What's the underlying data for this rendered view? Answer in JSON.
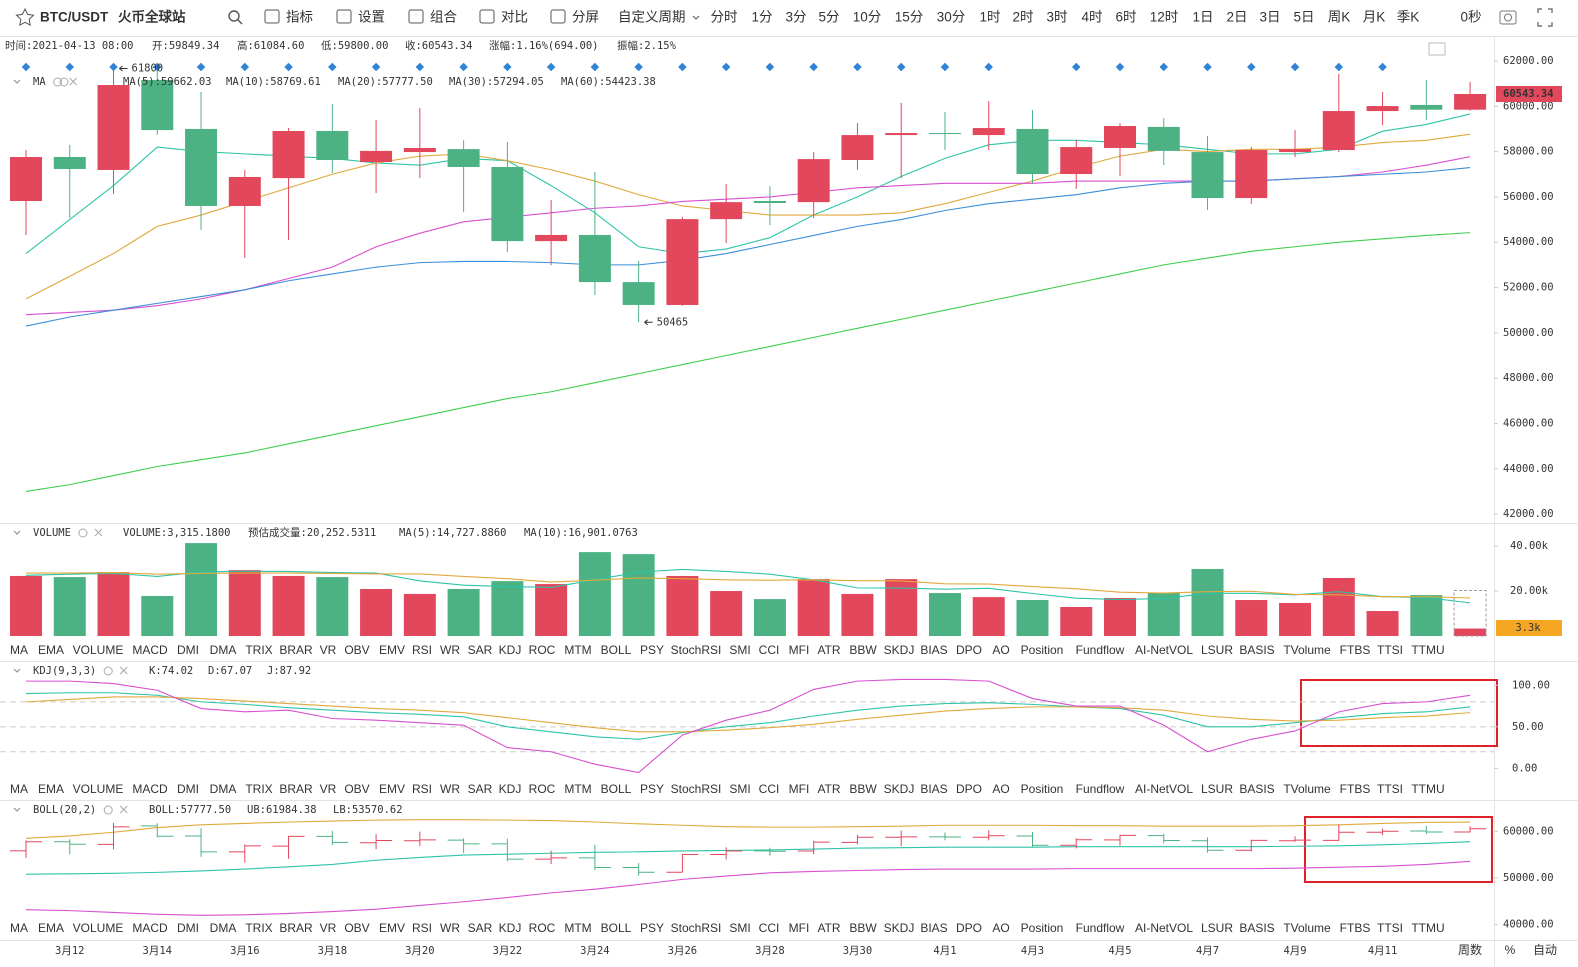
{
  "toolbar": {
    "symbol": "BTC/USDT",
    "exchange": "火币全球站",
    "buttons": [
      "指标",
      "设置",
      "组合",
      "对比",
      "分屏"
    ],
    "custom_period": "自定义周期",
    "periods": [
      "分时",
      "1分",
      "3分",
      "5分",
      "10分",
      "15分",
      "30分",
      "1时",
      "2时",
      "3时",
      "4时",
      "6时",
      "12时",
      "1日",
      "2日",
      "3日",
      "5日",
      "周K",
      "月K",
      "季K"
    ],
    "countdown": "0秒"
  },
  "info": [
    {
      "label": "时间:",
      "value": "2021-04-13 08:00"
    },
    {
      "label": "开:",
      "value": "59849.34"
    },
    {
      "label": "高:",
      "value": "61084.60"
    },
    {
      "label": "低:",
      "value": "59800.00"
    },
    {
      "label": "收:",
      "value": "60543.34"
    },
    {
      "label": "涨幅:",
      "value": "1.16%(694.00)"
    },
    {
      "label": "振幅:",
      "value": "2.15%"
    }
  ],
  "indicator_tabs": [
    "MA",
    "EMA",
    "VOLUME",
    "MACD",
    "DMI",
    "DMA",
    "TRIX",
    "BRAR",
    "VR",
    "OBV",
    "EMV",
    "RSI",
    "WR",
    "SAR",
    "KDJ",
    "ROC",
    "MTM",
    "BOLL",
    "PSY",
    "StochRSI",
    "SMI",
    "CCI",
    "MFI",
    "ATR",
    "BBW",
    "SKDJ",
    "BIAS",
    "DPO",
    "AO",
    "Position",
    "Fundflow",
    "AI-NetVOL",
    "LSUR",
    "BASIS",
    "TVolume",
    "FTBS",
    "TTSI",
    "TTMU"
  ],
  "x_axis": {
    "categories": [
      null,
      "3月12",
      null,
      "3月14",
      null,
      "3月16",
      null,
      "3月18",
      null,
      "3月20",
      null,
      "3月22",
      null,
      "3月24",
      null,
      "3月26",
      null,
      "3月28",
      null,
      "3月30",
      null,
      "4月1",
      null,
      "4月3",
      null,
      "4月5",
      null,
      "4月7",
      null,
      "4月9",
      null,
      "4月11",
      null,
      null
    ],
    "buttons": [
      "周数",
      "%",
      "自动"
    ]
  },
  "price_chart": {
    "type": "candlestick",
    "name": "MA",
    "up_color": "#e2475b",
    "down_color": "#4cb283",
    "ylim": [
      41650,
      63015
    ],
    "yticks": [
      {
        "value": 62000,
        "label": "62000.00"
      },
      {
        "value": 60000,
        "label": "60000.00"
      },
      {
        "value": 58000,
        "label": "58000.00"
      },
      {
        "value": 56000,
        "label": "56000.00"
      },
      {
        "value": 54000,
        "label": "54000.00"
      },
      {
        "value": 52000,
        "label": "52000.00"
      },
      {
        "value": 50000,
        "label": "50000.00"
      },
      {
        "value": 48000,
        "label": "48000.00"
      },
      {
        "value": 46000,
        "label": "46000.00"
      },
      {
        "value": 44000,
        "label": "44000.00"
      },
      {
        "value": 42000,
        "label": "42000.00"
      }
    ],
    "open": [
      55819,
      57762,
      57190,
      61160,
      59000,
      55600,
      56830,
      58910,
      57540,
      57980,
      58110,
      57320,
      54050,
      54320,
      52240,
      51230,
      55020,
      55820,
      55770,
      57630,
      58730,
      58820,
      58730,
      59000,
      57010,
      58160,
      59090,
      57980,
      55950,
      57980,
      58070,
      59790,
      60060,
      59849.34
    ],
    "high": [
      58070,
      58300,
      61800,
      61700,
      60630,
      57190,
      59040,
      60100,
      59400,
      59920,
      58500,
      58420,
      55860,
      57100,
      53170,
      55110,
      56570,
      56480,
      57980,
      59260,
      60150,
      59750,
      60230,
      59840,
      58510,
      59260,
      59480,
      58690,
      58200,
      58950,
      61430,
      60630,
      61160,
      61084.6
    ],
    "low": [
      54320,
      55070,
      56130,
      58730,
      54540,
      53300,
      54100,
      57060,
      56170,
      56830,
      55330,
      53570,
      52990,
      51670,
      50465,
      51190,
      53960,
      54760,
      55070,
      57190,
      56830,
      58070,
      58070,
      56610,
      56350,
      56920,
      57410,
      55420,
      55690,
      57760,
      57980,
      59170,
      59390,
      59800
    ],
    "close": [
      57762,
      57232,
      60940,
      58950,
      55600,
      56880,
      58910,
      57630,
      58030,
      58160,
      57320,
      54050,
      54320,
      52240,
      51230,
      55020,
      55770,
      55730,
      57670,
      58730,
      58820,
      58780,
      59040,
      57010,
      58200,
      59130,
      58030,
      55950,
      58070,
      58110,
      59790,
      60010,
      59850,
      60543.34
    ],
    "series": [
      {
        "name": "MA(5):59662.03",
        "color": "#2ec4a8",
        "values": [
          53500,
          55000,
          56500,
          58200,
          58000,
          57900,
          57800,
          57700,
          57500,
          57400,
          57700,
          57600,
          56500,
          55300,
          53800,
          53500,
          53700,
          54200,
          55200,
          56000,
          56900,
          57700,
          58300,
          58500,
          58500,
          58400,
          58300,
          58100,
          57900,
          57900,
          58100,
          58900,
          59200,
          59662.03
        ]
      },
      {
        "name": "MA(10):58769.61",
        "color": "#e0a93c",
        "values": [
          51500,
          52500,
          53500,
          54700,
          55200,
          55800,
          56400,
          57000,
          57500,
          57800,
          57900,
          57600,
          57200,
          56700,
          56100,
          55600,
          55400,
          55200,
          55200,
          55200,
          55300,
          55700,
          56200,
          56700,
          57300,
          57800,
          58100,
          58000,
          58100,
          58100,
          58200,
          58400,
          58500,
          58769.61
        ]
      },
      {
        "name": "MA(20):57777.50",
        "color": "#d84fd2",
        "values": [
          50800,
          50900,
          51000,
          51200,
          51500,
          51900,
          52400,
          52900,
          53800,
          54400,
          54900,
          55100,
          55300,
          55500,
          55600,
          55800,
          55900,
          56000,
          56200,
          56400,
          56500,
          56600,
          56600,
          56600,
          56700,
          56700,
          56700,
          56700,
          56700,
          56800,
          56900,
          57100,
          57400,
          57777.5
        ]
      },
      {
        "name": "MA(30):57294.05",
        "color": "#3b8fd8",
        "values": [
          50300,
          50700,
          51000,
          51300,
          51600,
          51900,
          52300,
          52600,
          52900,
          53100,
          53150,
          53150,
          53100,
          53000,
          53000,
          53200,
          53500,
          53900,
          54300,
          54700,
          55000,
          55400,
          55700,
          55900,
          56100,
          56400,
          56600,
          56700,
          56700,
          56800,
          56900,
          57000,
          57100,
          57294.05
        ]
      },
      {
        "name": "MA(60):54423.38",
        "color": "#3fcf4c",
        "values": [
          43000,
          43300,
          43700,
          44100,
          44400,
          44700,
          45100,
          45500,
          45900,
          46300,
          46700,
          47100,
          47400,
          47800,
          48200,
          48600,
          49000,
          49400,
          49800,
          50200,
          50600,
          51000,
          51400,
          51800,
          52200,
          52600,
          53000,
          53300,
          53600,
          53800,
          54000,
          54150,
          54300,
          54423.38
        ]
      }
    ]
  },
  "volume_chart": {
    "type": "bar",
    "name": "VOLUME",
    "label": "VOLUME:3,315.1800",
    "ylim": [
      0,
      49800
    ],
    "yticks": [
      {
        "value": 40000,
        "label": "40.00k"
      },
      {
        "value": 20000,
        "label": "20.00k"
      }
    ],
    "values": [
      26700,
      26200,
      28400,
      17800,
      41300,
      29300,
      26700,
      26200,
      20900,
      18700,
      20900,
      24400,
      23100,
      37300,
      36400,
      26700,
      20000,
      16400,
      25300,
      18700,
      25300,
      19100,
      17300,
      16000,
      12900,
      16900,
      19100,
      29800,
      16000,
      14700,
      25800,
      11100,
      18200,
      3315.18
    ],
    "last_value_label": "3.3k",
    "predicted": {
      "label": "预估成交量:20,252.5311",
      "value": 20252.5311
    },
    "series": [
      {
        "name": "MA(5):14,727.8860",
        "color": "#2ec4a8",
        "values": [
          27000,
          27500,
          27800,
          26500,
          28500,
          28800,
          28700,
          28200,
          28000,
          24500,
          22600,
          22000,
          21600,
          25000,
          28400,
          29600,
          28700,
          27500,
          25000,
          21400,
          21300,
          20800,
          21200,
          18900,
          16800,
          16200,
          16700,
          19000,
          19000,
          18300,
          19700,
          17500,
          17100,
          14727.886
        ]
      },
      {
        "name": "MA(10):16,901.0763",
        "color": "#e0a93c",
        "values": [
          28000,
          28000,
          28200,
          27500,
          27800,
          28000,
          28000,
          27800,
          27600,
          27600,
          26500,
          25500,
          24000,
          24800,
          25800,
          25500,
          25000,
          24800,
          25000,
          24600,
          24500,
          23200,
          23100,
          22000,
          21000,
          19500,
          19100,
          19700,
          19900,
          18500,
          18300,
          17500,
          17500,
          16901.0763
        ]
      }
    ]
  },
  "kdj_chart": {
    "type": "line",
    "name": "KDJ(9,3,3)",
    "ylim": [
      -14,
      128
    ],
    "yticks": [
      {
        "value": 100,
        "label": "100.00"
      },
      {
        "value": 50,
        "label": "50.00"
      },
      {
        "value": 0,
        "label": "0.00"
      }
    ],
    "levels": [
      80,
      50,
      20
    ],
    "series": [
      {
        "name": "K:74.02",
        "color": "#2ec4a8",
        "values": [
          90,
          91,
          91,
          88,
          80,
          77,
          73,
          70,
          67,
          65,
          62,
          50,
          44,
          38,
          35,
          43,
          50,
          55,
          63,
          70,
          75,
          78,
          79,
          77,
          74,
          72,
          64,
          50,
          50,
          55,
          61,
          66,
          68,
          74.02
        ]
      },
      {
        "name": "D:67.07",
        "color": "#e0a93c",
        "values": [
          80,
          83,
          86,
          86,
          84,
          81,
          78,
          75,
          72,
          70,
          67,
          61,
          55,
          49,
          44,
          44,
          46,
          49,
          53,
          59,
          64,
          69,
          72,
          74,
          74,
          73,
          70,
          63,
          59,
          57,
          58,
          61,
          63,
          67.07
        ]
      },
      {
        "name": "J:87.92",
        "color": "#d84fd2",
        "values": [
          105,
          105,
          102,
          94,
          72,
          68,
          70,
          60,
          58,
          55,
          52,
          25,
          20,
          5,
          -5,
          40,
          58,
          70,
          95,
          105,
          107,
          107,
          105,
          84,
          75,
          75,
          52,
          20,
          35,
          45,
          68,
          78,
          80,
          87.92
        ]
      }
    ]
  },
  "boll_chart": {
    "type": "ohlc",
    "name": "BOLL(20,2)",
    "ylim": [
      36700,
      66500
    ],
    "yticks": [
      {
        "value": 60000,
        "label": "60000.00"
      },
      {
        "value": 50000,
        "label": "50000.00"
      },
      {
        "value": 40000,
        "label": "40000.00"
      }
    ],
    "series": [
      {
        "name": "BOLL:57777.50",
        "color": "#2ec4a8",
        "values": [
          50800,
          50900,
          51000,
          51200,
          51500,
          51900,
          52400,
          52900,
          53800,
          54400,
          54900,
          55100,
          55300,
          55500,
          55600,
          55800,
          55900,
          56000,
          56200,
          56400,
          56500,
          56600,
          56600,
          56600,
          56700,
          56700,
          56700,
          56700,
          56700,
          56800,
          56900,
          57100,
          57400,
          57777.5
        ]
      },
      {
        "name": "UB:61984.38",
        "color": "#e0a93c",
        "values": [
          58500,
          59000,
          59800,
          60800,
          61400,
          61700,
          62000,
          62200,
          62400,
          62500,
          62500,
          62400,
          62300,
          62000,
          61600,
          61300,
          61000,
          60900,
          60900,
          61000,
          61100,
          61300,
          61300,
          61300,
          61200,
          61200,
          61100,
          61100,
          61100,
          61200,
          61400,
          61700,
          61900,
          61984.38
        ]
      },
      {
        "name": "LB:53570.62",
        "color": "#d84fd2",
        "values": [
          43200,
          43000,
          42600,
          42200,
          42000,
          42100,
          42400,
          42800,
          43300,
          44100,
          44900,
          45800,
          46800,
          47600,
          48600,
          49700,
          50400,
          51100,
          51400,
          51600,
          51800,
          51900,
          51900,
          51900,
          52000,
          52000,
          52000,
          52000,
          52000,
          52100,
          52300,
          52500,
          52900,
          53570.62
        ]
      }
    ]
  }
}
